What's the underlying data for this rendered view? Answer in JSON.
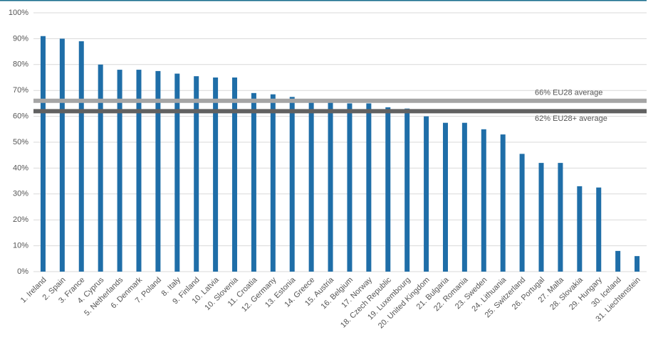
{
  "chart_data": {
    "type": "bar",
    "categories": [
      "1. Ireland",
      "2. Spain",
      "3. France",
      "4. Cyprus",
      "5. Netherlands",
      "6. Denmark",
      "7. Poland",
      "8. Italy",
      "9. Finland",
      "10. Latvia",
      "10. Slovenia",
      "11. Croatia",
      "12. Germany",
      "13. Estonia",
      "14. Greece",
      "15. Austria",
      "16. Belgium",
      "17. Norway",
      "18. Czech Republic",
      "19. Luxembourg",
      "20. United Kingdom",
      "21. Bulgaria",
      "22. Romania",
      "23. Sweden",
      "24. Lithuania",
      "25. Switzerland",
      "26. Portugal",
      "27. Malta",
      "28. Slovakia",
      "29. Hungary",
      "30. Iceland",
      "31. Liechtenstein"
    ],
    "values": [
      91,
      90,
      89,
      80,
      78,
      78,
      77.5,
      76.5,
      75.5,
      75,
      75,
      69,
      68.5,
      67.5,
      66,
      65.5,
      65,
      65,
      63.5,
      63,
      60,
      57.5,
      57.5,
      55,
      53,
      45.5,
      42,
      42,
      33,
      32.5,
      8,
      6
    ],
    "color": "#1f6ea8",
    "ylim": [
      0,
      100
    ],
    "yticks": [
      {
        "value": 0,
        "label": "0%"
      },
      {
        "value": 10,
        "label": "10%"
      },
      {
        "value": 20,
        "label": "20%"
      },
      {
        "value": 30,
        "label": "30%"
      },
      {
        "value": 40,
        "label": "40%"
      },
      {
        "value": 50,
        "label": "50%"
      },
      {
        "value": 60,
        "label": "60%"
      },
      {
        "value": 70,
        "label": "70%"
      },
      {
        "value": 80,
        "label": "80%"
      },
      {
        "value": 90,
        "label": "90%"
      },
      {
        "value": 100,
        "label": "100%"
      }
    ],
    "grid": true,
    "reference_lines": [
      {
        "value": 66,
        "label": "66% EU28 average",
        "color": "#a5a5a5"
      },
      {
        "value": 62,
        "label": "62% EU28+ average",
        "color": "#616161"
      }
    ]
  }
}
